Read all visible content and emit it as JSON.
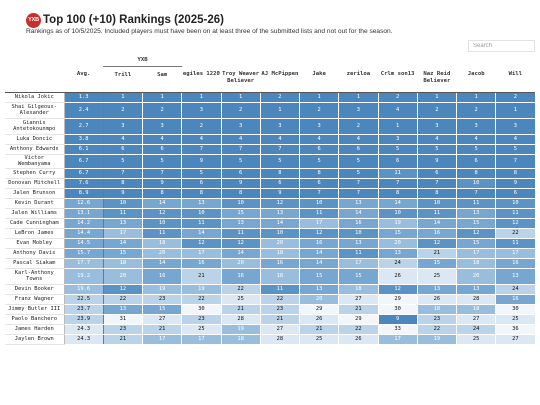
{
  "header": {
    "logo_text": "YXB",
    "title": "Top 100 (+10) Rankings (2025-26)",
    "subtitle": "Rankings as of 10/5/2025. Included players must have been on at least three of the submitted lists and not out for the season."
  },
  "search": {
    "placeholder": "Search"
  },
  "table": {
    "group_label": "YXB",
    "columns": [
      "Avg.",
      "Trill",
      "Sam",
      "egiles 1220",
      "Troy Weaver Believer",
      "AJ McPippen",
      "Jake",
      "zeriloa",
      "Crlm son13",
      "Naz Reid Believer",
      "Jacob",
      "Will"
    ],
    "colors": [
      "#f1f6fb",
      "#dbe8f4",
      "#bad3e9",
      "#98bddd",
      "#77a6d1",
      "#5b93c5",
      "#4b86bc"
    ],
    "rows": [
      {
        "name": "Nikola Jokic",
        "ranks": [
          1.3,
          1,
          1,
          1,
          1,
          2,
          1,
          1,
          2,
          1,
          1,
          2
        ]
      },
      {
        "name": "Shai Gilgeous-Alexander",
        "ranks": [
          2.4,
          2,
          2,
          3,
          2,
          1,
          2,
          3,
          4,
          2,
          2,
          1
        ]
      },
      {
        "name": "Giannis Antetokounmpo",
        "ranks": [
          2.7,
          3,
          3,
          2,
          3,
          3,
          3,
          2,
          1,
          3,
          3,
          3
        ]
      },
      {
        "name": "Luka Doncic",
        "ranks": [
          3.8,
          4,
          4,
          4,
          4,
          4,
          4,
          4,
          3,
          4,
          4,
          4
        ]
      },
      {
        "name": "Anthony Edwards",
        "ranks": [
          6.1,
          6,
          6,
          7,
          7,
          7,
          6,
          6,
          5,
          5,
          5,
          5
        ]
      },
      {
        "name": "Victor Wembanyama",
        "ranks": [
          6.7,
          5,
          5,
          9,
          5,
          5,
          5,
          5,
          6,
          9,
          6,
          7
        ]
      },
      {
        "name": "Stephen Curry",
        "ranks": [
          6.7,
          7,
          7,
          5,
          6,
          8,
          8,
          5,
          11,
          6,
          8,
          8
        ]
      },
      {
        "name": "Donovan Mitchell",
        "ranks": [
          7.6,
          8,
          9,
          6,
          9,
          6,
          6,
          7,
          7,
          7,
          10,
          9
        ]
      },
      {
        "name": "Jalen Brunson",
        "ranks": [
          8.9,
          9,
          8,
          8,
          8,
          9,
          7,
          7,
          8,
          8,
          7,
          6
        ]
      },
      {
        "name": "Kevin Durant",
        "ranks": [
          12.6,
          10,
          14,
          13,
          10,
          12,
          10,
          13,
          14,
          10,
          11,
          10
        ]
      },
      {
        "name": "Jalen Williams",
        "ranks": [
          13.1,
          11,
          12,
          10,
          15,
          13,
          11,
          14,
          10,
          11,
          13,
          11
        ]
      },
      {
        "name": "Cade Cunningham",
        "ranks": [
          14.2,
          13,
          10,
          11,
          13,
          14,
          17,
          16,
          19,
          14,
          15,
          12
        ]
      },
      {
        "name": "LeBron James",
        "ranks": [
          14.4,
          17,
          11,
          14,
          11,
          10,
          12,
          10,
          15,
          16,
          12,
          22
        ]
      },
      {
        "name": "Evan Mobley",
        "ranks": [
          14.5,
          14,
          18,
          12,
          12,
          20,
          16,
          13,
          20,
          12,
          15,
          11
        ]
      },
      {
        "name": "Anthony Davis",
        "ranks": [
          15.7,
          15,
          20,
          17,
          14,
          18,
          14,
          11,
          13,
          21,
          17,
          17
        ]
      },
      {
        "name": "Pascal Siakam",
        "ranks": [
          17.7,
          18,
          14,
          16,
          20,
          16,
          14,
          17,
          24,
          15,
          18,
          16
        ]
      },
      {
        "name": "Karl-Anthony Towns",
        "ranks": [
          19.2,
          20,
          16,
          21,
          16,
          18,
          15,
          15,
          26,
          25,
          20,
          13
        ]
      },
      {
        "name": "Devin Booker",
        "ranks": [
          19.6,
          12,
          19,
          19,
          22,
          11,
          13,
          18,
          12,
          13,
          13,
          24
        ]
      },
      {
        "name": "Franz Wagner",
        "ranks": [
          22.5,
          22,
          23,
          22,
          25,
          22,
          20,
          27,
          29,
          26,
          28,
          16
        ]
      },
      {
        "name": "Jimmy Butler III",
        "ranks": [
          23.7,
          13,
          15,
          30,
          21,
          23,
          29,
          21,
          30,
          18,
          18,
          30
        ]
      },
      {
        "name": "Paolo Banchero",
        "ranks": [
          23.9,
          31,
          27,
          23,
          28,
          21,
          26,
          29,
          9,
          23,
          27,
          25
        ]
      },
      {
        "name": "James Harden",
        "ranks": [
          24.3,
          23,
          21,
          25,
          19,
          27,
          21,
          22,
          33,
          22,
          24,
          36
        ]
      },
      {
        "name": "Jaylen Brown",
        "ranks": [
          24.3,
          21,
          17,
          17,
          18,
          28,
          25,
          26,
          17,
          19,
          25,
          27
        ]
      }
    ]
  }
}
